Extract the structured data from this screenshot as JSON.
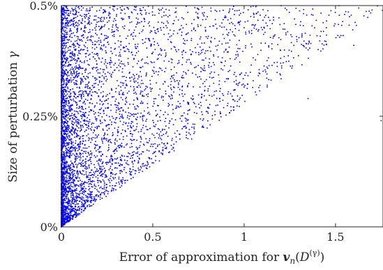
{
  "chart_data": {
    "type": "scatter",
    "title": "",
    "xlabel": "Error of approximation for v_n(D^(γ))",
    "xlabel_prefix": "Error of approximation for ",
    "xlabel_math": "v",
    "xlabel_sub": "n",
    "xlabel_paren_open": "(",
    "xlabel_D": "D",
    "xlabel_sup": "(γ)",
    "xlabel_paren_close": ")",
    "ylabel": "Size of perturbation γ",
    "ylabel_text": "Size of perturbation ",
    "ylabel_gamma": "γ",
    "xlim": [
      0,
      1.76
    ],
    "ylim": [
      0,
      0.5
    ],
    "y_unit": "%",
    "xticks": [
      "0",
      "0.5",
      "1",
      "1.5"
    ],
    "xtick_values": [
      0,
      0.5,
      1,
      1.5
    ],
    "yticks": [
      "0%",
      "0.25%",
      "0.5%"
    ],
    "ytick_values": [
      0,
      0.25,
      0.5
    ],
    "grid": false,
    "marker_color": "#0000ff",
    "marker": "dot",
    "series": [
      {
        "n_points": 5000,
        "description_of_distribution": "error x spreads from 0 up to roughly 3.5*gamma (in % units); dense near x=0, thinning to the right",
        "sample_points": [
          [
            0.02,
            0.01
          ],
          [
            0.05,
            0.04
          ],
          [
            0.1,
            0.08
          ],
          [
            0.2,
            0.1
          ],
          [
            0.3,
            0.12
          ],
          [
            0.4,
            0.15
          ],
          [
            0.55,
            0.19
          ],
          [
            0.7,
            0.22
          ],
          [
            0.8,
            0.26
          ],
          [
            0.95,
            0.31
          ],
          [
            1.05,
            0.33
          ],
          [
            1.2,
            0.37
          ],
          [
            1.35,
            0.4
          ],
          [
            1.45,
            0.45
          ],
          [
            1.55,
            0.48
          ],
          [
            1.7,
            0.49
          ],
          [
            1.75,
            0.24
          ],
          [
            1.6,
            0.41
          ],
          [
            1.35,
            0.29
          ],
          [
            1.0,
            0.45
          ]
        ]
      }
    ]
  }
}
